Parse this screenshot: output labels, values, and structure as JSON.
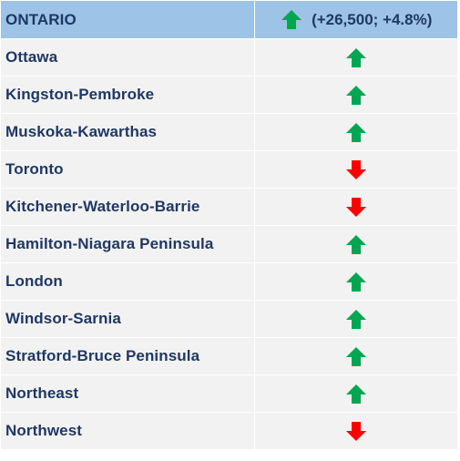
{
  "header": {
    "region": "ONTARIO",
    "direction": "up",
    "change_text": "(+26,500; +4.8%)"
  },
  "colors": {
    "up": "#00a651",
    "down": "#ff0000",
    "header_bg": "#9dc3e6",
    "row_bg": "#f2f2f2",
    "text": "#1f3864"
  },
  "rows": [
    {
      "name": "Ottawa",
      "direction": "up"
    },
    {
      "name": "Kingston-Pembroke",
      "direction": "up"
    },
    {
      "name": "Muskoka-Kawarthas",
      "direction": "up"
    },
    {
      "name": "Toronto",
      "direction": "down"
    },
    {
      "name": "Kitchener-Waterloo-Barrie",
      "direction": "down"
    },
    {
      "name": "Hamilton-Niagara Peninsula",
      "direction": "up"
    },
    {
      "name": "London",
      "direction": "up"
    },
    {
      "name": "Windsor-Sarnia",
      "direction": "up"
    },
    {
      "name": "Stratford-Bruce Peninsula",
      "direction": "up"
    },
    {
      "name": "Northeast",
      "direction": "up"
    },
    {
      "name": "Northwest",
      "direction": "down"
    }
  ]
}
